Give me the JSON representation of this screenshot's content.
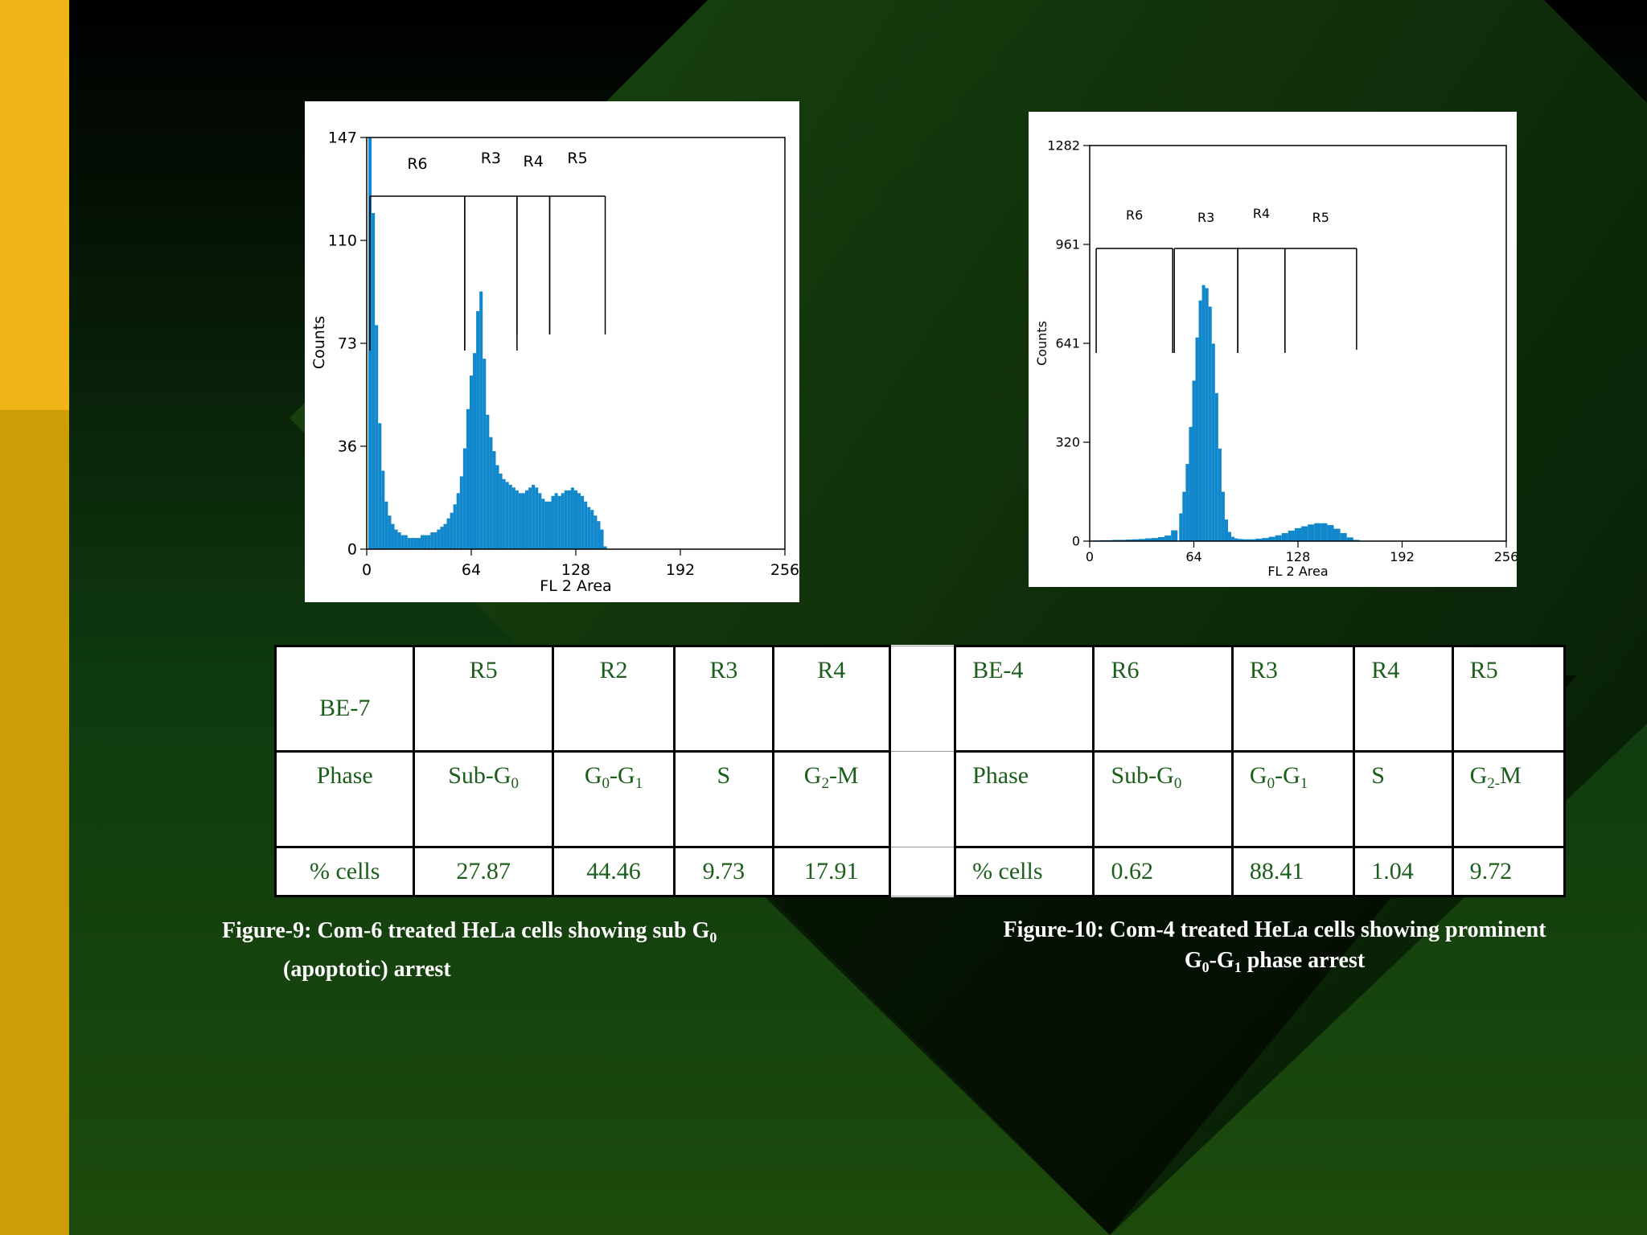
{
  "chart_data": [
    {
      "type": "histogram",
      "xlabel": "FL 2 Area",
      "ylabel": "Counts",
      "xlim": [
        0,
        256
      ],
      "ylim": [
        0,
        147
      ],
      "xticks": [
        "0",
        "64",
        "128",
        "192",
        "256"
      ],
      "yticks": [
        "0",
        "36",
        "73",
        "110",
        "147"
      ],
      "regions": [
        {
          "name": "R6",
          "x": [
            2,
            60
          ]
        },
        {
          "name": "R3",
          "x": [
            60,
            92
          ]
        },
        {
          "name": "R4",
          "x": [
            92,
            112
          ]
        },
        {
          "name": "R5",
          "x": [
            112,
            146
          ]
        }
      ],
      "bins_x": [
        2,
        4,
        6,
        8,
        10,
        12,
        14,
        16,
        18,
        20,
        22,
        24,
        26,
        28,
        30,
        32,
        34,
        36,
        38,
        40,
        42,
        44,
        46,
        48,
        50,
        52,
        54,
        56,
        58,
        60,
        62,
        64,
        66,
        68,
        70,
        72,
        74,
        76,
        78,
        80,
        82,
        84,
        86,
        88,
        90,
        92,
        94,
        96,
        98,
        100,
        102,
        104,
        106,
        108,
        110,
        112,
        114,
        116,
        118,
        120,
        122,
        124,
        126,
        128,
        130,
        132,
        134,
        136,
        138,
        140,
        142,
        144,
        146
      ],
      "counts": [
        147,
        120,
        80,
        45,
        28,
        17,
        12,
        9,
        7,
        6,
        5,
        5,
        4,
        4,
        4,
        4,
        5,
        5,
        5,
        6,
        6,
        7,
        8,
        9,
        11,
        13,
        16,
        20,
        26,
        36,
        50,
        62,
        70,
        85,
        92,
        68,
        48,
        40,
        35,
        30,
        27,
        25,
        24,
        23,
        22,
        21,
        20,
        20,
        21,
        22,
        23,
        22,
        20,
        18,
        17,
        17,
        19,
        20,
        19,
        20,
        21,
        21,
        22,
        21,
        20,
        19,
        17,
        15,
        14,
        12,
        10,
        7,
        1
      ]
    },
    {
      "type": "histogram",
      "xlabel": "FL 2 Area",
      "ylabel": "Counts",
      "xlim": [
        0,
        256
      ],
      "ylim": [
        0,
        1282
      ],
      "xticks": [
        "0",
        "64",
        "128",
        "192",
        "256"
      ],
      "yticks": [
        "0",
        "320",
        "641",
        "961",
        "1282"
      ],
      "regions": [
        {
          "name": "R6",
          "x": [
            4,
            51
          ]
        },
        {
          "name": "R3",
          "x": [
            52,
            91
          ]
        },
        {
          "name": "R4",
          "x": [
            91,
            120
          ]
        },
        {
          "name": "R5",
          "x": [
            120,
            164
          ]
        }
      ],
      "bins_x": [
        4,
        8,
        12,
        16,
        20,
        24,
        28,
        32,
        36,
        40,
        44,
        48,
        52,
        56,
        58,
        60,
        62,
        64,
        66,
        68,
        70,
        72,
        74,
        76,
        78,
        80,
        82,
        84,
        86,
        88,
        90,
        92,
        96,
        100,
        104,
        108,
        112,
        116,
        120,
        124,
        128,
        132,
        136,
        140,
        144,
        148,
        152,
        156,
        160,
        164
      ],
      "counts": [
        2,
        3,
        3,
        4,
        4,
        5,
        6,
        7,
        9,
        10,
        13,
        18,
        35,
        90,
        160,
        250,
        370,
        520,
        660,
        780,
        830,
        820,
        760,
        640,
        480,
        300,
        160,
        70,
        30,
        14,
        9,
        7,
        6,
        6,
        8,
        10,
        14,
        19,
        26,
        34,
        42,
        48,
        54,
        58,
        58,
        52,
        40,
        26,
        12,
        4
      ]
    }
  ],
  "table": {
    "left": {
      "header": [
        "BE-7",
        "R5",
        "R2",
        "R3",
        "R4"
      ],
      "phase": {
        "label": "Phase",
        "items": [
          {
            "main": "Sub-G",
            "sub": "0",
            "tail": ""
          },
          {
            "main": "G",
            "sub": "0",
            "tail": "-G",
            "sub2": "1"
          },
          {
            "main": "S",
            "sub": "",
            "tail": ""
          },
          {
            "main": "G",
            "sub": "2",
            "tail": "-M"
          }
        ]
      },
      "cells": [
        "% cells",
        "27.87",
        "44.46",
        "9.73",
        "17.91"
      ]
    },
    "right": {
      "header": [
        "BE-4",
        "R6",
        "R3",
        "R4",
        "R5"
      ],
      "phase": {
        "label": "Phase",
        "items": [
          {
            "main": "Sub-G",
            "sub": "0",
            "tail": ""
          },
          {
            "main": "G",
            "sub": "0",
            "tail": "-G",
            "sub2": "1"
          },
          {
            "main": "S",
            "sub": "",
            "tail": ""
          },
          {
            "main": "G",
            "sub": "2-",
            "tail": "M"
          }
        ]
      },
      "cells": [
        "% cells",
        "0.62",
        "88.41",
        "1.04",
        "9.72"
      ]
    }
  },
  "captions": {
    "fig9_line1": "Figure-9: Com-6 treated  HeLa cells  showing sub G",
    "fig9_line1_sub": "0",
    "fig9_line2": "(apoptotic) arrest",
    "fig10_line1": "Figure-10: Com-4 treated HeLa cells showing prominent",
    "fig10_line2_a": "G",
    "fig10_line2_sub1": "0",
    "fig10_line2_b": "-G",
    "fig10_line2_sub2": "1",
    "fig10_line2_c": " phase arrest"
  },
  "colors": {
    "histogram": "#1188cc",
    "table_text": "#1b5e1b",
    "sidebar_top": "#f0b418",
    "sidebar_bottom": "#cc9e06"
  }
}
